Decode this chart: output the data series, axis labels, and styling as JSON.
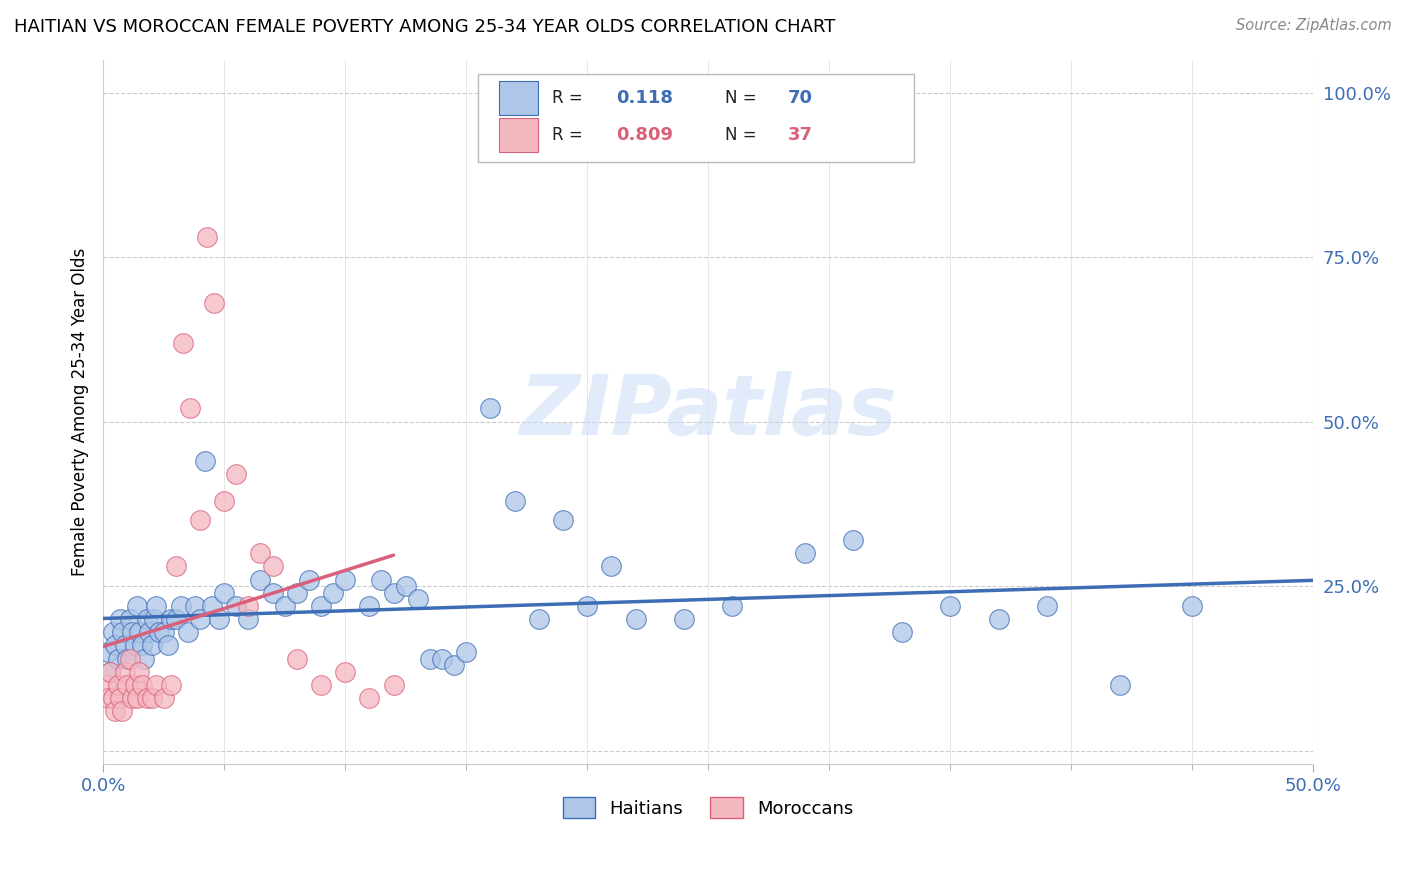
{
  "title": "HAITIAN VS MOROCCAN FEMALE POVERTY AMONG 25-34 YEAR OLDS CORRELATION CHART",
  "source": "Source: ZipAtlas.com",
  "ylabel": "Female Poverty Among 25-34 Year Olds",
  "xlim": [
    0.0,
    0.5
  ],
  "ylim": [
    -0.02,
    1.05
  ],
  "ytick_positions": [
    0.0,
    0.25,
    0.5,
    0.75,
    1.0
  ],
  "ytick_labels": [
    "",
    "25.0%",
    "50.0%",
    "75.0%",
    "100.0%"
  ],
  "xtick_positions": [
    0.0,
    0.5
  ],
  "xtick_labels": [
    "0.0%",
    "50.0%"
  ],
  "haiti_R": 0.118,
  "haiti_N": 70,
  "moroccan_R": 0.809,
  "moroccan_N": 37,
  "haiti_color": "#aec6e8",
  "moroccan_color": "#f4b8c1",
  "haiti_line_color": "#3d6db5",
  "moroccan_line_color": "#d9607a",
  "watermark_text": "ZIPatlas",
  "legend_haiti_label": "Haitians",
  "legend_moroccan_label": "Moroccans",
  "haiti_x": [
    0.002,
    0.003,
    0.004,
    0.005,
    0.006,
    0.007,
    0.008,
    0.009,
    0.01,
    0.011,
    0.012,
    0.013,
    0.014,
    0.015,
    0.016,
    0.017,
    0.018,
    0.019,
    0.02,
    0.021,
    0.022,
    0.023,
    0.025,
    0.027,
    0.028,
    0.03,
    0.032,
    0.035,
    0.038,
    0.04,
    0.042,
    0.045,
    0.048,
    0.05,
    0.055,
    0.06,
    0.065,
    0.07,
    0.075,
    0.08,
    0.085,
    0.09,
    0.095,
    0.1,
    0.11,
    0.115,
    0.12,
    0.125,
    0.13,
    0.135,
    0.14,
    0.145,
    0.15,
    0.16,
    0.17,
    0.18,
    0.19,
    0.2,
    0.21,
    0.22,
    0.24,
    0.26,
    0.29,
    0.31,
    0.33,
    0.35,
    0.37,
    0.39,
    0.42,
    0.45
  ],
  "haiti_y": [
    0.15,
    0.12,
    0.18,
    0.16,
    0.14,
    0.2,
    0.18,
    0.16,
    0.14,
    0.2,
    0.18,
    0.16,
    0.22,
    0.18,
    0.16,
    0.14,
    0.2,
    0.18,
    0.16,
    0.2,
    0.22,
    0.18,
    0.18,
    0.16,
    0.2,
    0.2,
    0.22,
    0.18,
    0.22,
    0.2,
    0.44,
    0.22,
    0.2,
    0.24,
    0.22,
    0.2,
    0.26,
    0.24,
    0.22,
    0.24,
    0.26,
    0.22,
    0.24,
    0.26,
    0.22,
    0.26,
    0.24,
    0.25,
    0.23,
    0.14,
    0.14,
    0.13,
    0.15,
    0.52,
    0.38,
    0.2,
    0.35,
    0.22,
    0.28,
    0.2,
    0.2,
    0.22,
    0.3,
    0.32,
    0.18,
    0.22,
    0.2,
    0.22,
    0.1,
    0.22
  ],
  "moroccan_x": [
    0.001,
    0.002,
    0.003,
    0.004,
    0.005,
    0.006,
    0.007,
    0.008,
    0.009,
    0.01,
    0.011,
    0.012,
    0.013,
    0.014,
    0.015,
    0.016,
    0.018,
    0.02,
    0.022,
    0.025,
    0.028,
    0.03,
    0.033,
    0.036,
    0.04,
    0.043,
    0.046,
    0.05,
    0.055,
    0.06,
    0.065,
    0.07,
    0.08,
    0.09,
    0.1,
    0.11,
    0.12
  ],
  "moroccan_y": [
    0.1,
    0.08,
    0.12,
    0.08,
    0.06,
    0.1,
    0.08,
    0.06,
    0.12,
    0.1,
    0.14,
    0.08,
    0.1,
    0.08,
    0.12,
    0.1,
    0.08,
    0.08,
    0.1,
    0.08,
    0.1,
    0.28,
    0.62,
    0.52,
    0.35,
    0.78,
    0.68,
    0.38,
    0.42,
    0.22,
    0.3,
    0.28,
    0.14,
    0.1,
    0.12,
    0.08,
    0.1
  ]
}
